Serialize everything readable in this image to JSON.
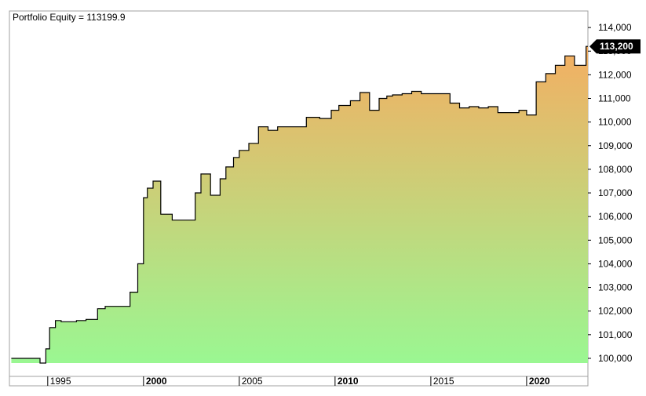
{
  "chart_data": {
    "type": "area",
    "title": "Portfolio Equity = 113199.9",
    "last_value_label": "113,200",
    "last_value": 113200,
    "y_ticks": [
      100000,
      101000,
      102000,
      103000,
      104000,
      105000,
      106000,
      107000,
      108000,
      109000,
      110000,
      111000,
      112000,
      113000,
      114000
    ],
    "y_tick_labels": [
      "100,000",
      "101,000",
      "102,000",
      "103,000",
      "104,000",
      "105,000",
      "106,000",
      "107,000",
      "108,000",
      "109,000",
      "110,000",
      "111,000",
      "112,000",
      "113,000",
      "114,000"
    ],
    "x_ticks": [
      1995,
      2000,
      2005,
      2010,
      2015,
      2020
    ],
    "x_tick_labels": [
      "1995",
      "2000",
      "2005",
      "2010",
      "2015",
      "2020"
    ],
    "x_tick_bold": [
      false,
      true,
      false,
      true,
      false,
      true
    ],
    "ylim": [
      99800,
      114700
    ],
    "xlim": [
      1993.0,
      2023.2
    ],
    "grid": false,
    "fill_gradient": {
      "top": "#f4ae62",
      "bottom": "#9af792"
    },
    "line_color": "#000000",
    "series": [
      {
        "x": [
          1993.1,
          1994.1,
          1994.6,
          1994.9,
          1995.1,
          1995.4,
          1995.7,
          1996.0,
          1996.5,
          1997.0,
          1997.6,
          1998.0,
          1998.5,
          1999.0,
          1999.3,
          1999.7,
          2000.0,
          2000.2,
          2000.5,
          2000.9,
          2001.5,
          2002.0,
          2002.4,
          2002.7,
          2003.0,
          2003.5,
          2004.0,
          2004.3,
          2004.7,
          2005.0,
          2005.5,
          2006.0,
          2006.5,
          2007.0,
          2007.8,
          2008.5,
          2009.2,
          2009.8,
          2010.2,
          2010.8,
          2011.3,
          2011.8,
          2012.3,
          2012.7,
          2013.0,
          2013.5,
          2014.0,
          2014.5,
          2015.0,
          2015.5,
          2016.0,
          2016.5,
          2017.0,
          2017.5,
          2018.0,
          2018.5,
          2019.0,
          2019.6,
          2020.0,
          2020.5,
          2021.0,
          2021.5,
          2022.0,
          2022.5,
          2023.1
        ],
        "values": [
          100000,
          100000,
          99800,
          100400,
          101300,
          101600,
          101550,
          101550,
          101600,
          101650,
          102100,
          102200,
          102200,
          102200,
          102800,
          104000,
          106800,
          107200,
          107500,
          106100,
          105850,
          105850,
          105850,
          107000,
          107800,
          106900,
          107600,
          108100,
          108500,
          108800,
          109100,
          109800,
          109650,
          109800,
          109800,
          110200,
          110150,
          110500,
          110700,
          110900,
          111250,
          110500,
          111000,
          111100,
          111150,
          111200,
          111300,
          111200,
          111200,
          111200,
          110800,
          110600,
          110650,
          110600,
          110650,
          110400,
          110400,
          110500,
          110300,
          111700,
          112050,
          112400,
          112800,
          112400,
          113200
        ]
      }
    ]
  }
}
